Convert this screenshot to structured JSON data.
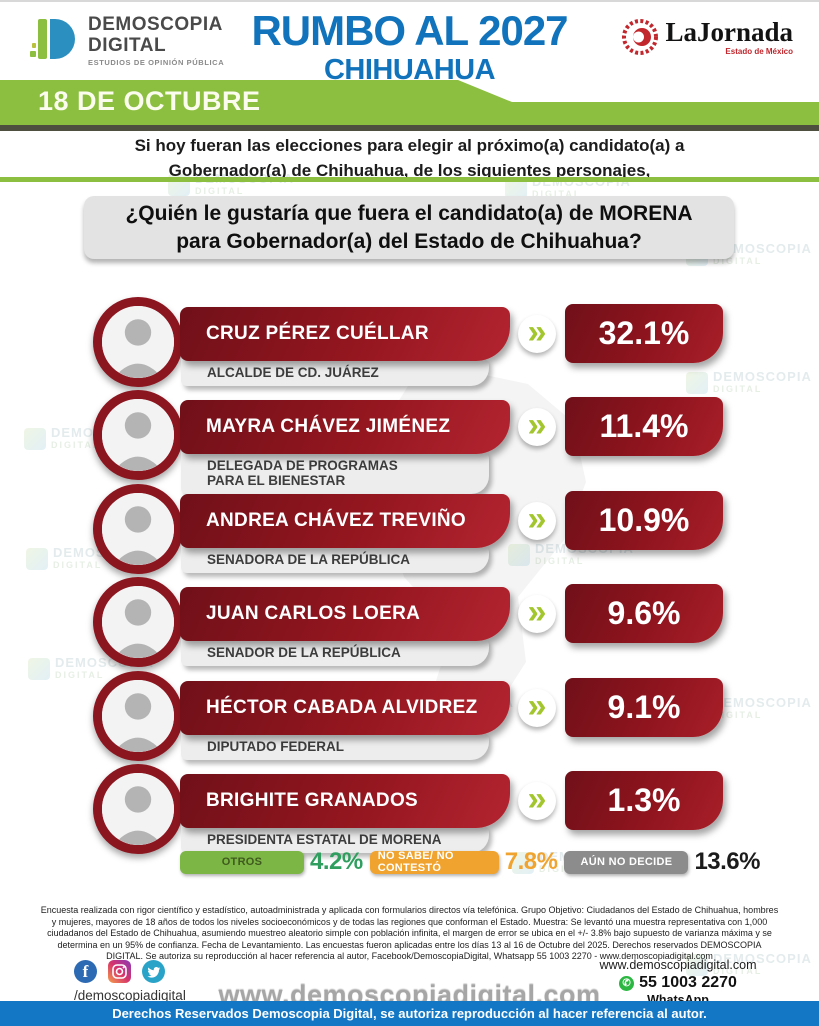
{
  "header": {
    "brand": {
      "line1": "DEMOSCOPIA",
      "line2": "DIGITAL",
      "tagline": "ESTUDIOS DE OPINIÓN PÚBLICA"
    },
    "title_line1": "RUMBO AL 2027",
    "title_line2": "CHIHUAHUA",
    "partner": {
      "name": "LaJornada",
      "sub": "Estado de México"
    },
    "date_banner": "18 DE OCTUBRE"
  },
  "intro": {
    "line1": "Si hoy fueran las elecciones para elegir al próximo(a) candidato(a) a",
    "line2": "Gobernador(a) de Chihuahua, de los siguientes personajes,"
  },
  "question": {
    "line1": "¿Quién le gustaría que fuera el candidato(a) de MORENA",
    "line2": "para Gobernador(a) del Estado de Chihuahua?"
  },
  "icons": {
    "chevron": "»",
    "facebook": "f",
    "whatsapp_phone": "✆"
  },
  "candidates": [
    {
      "name": "CRUZ PÉREZ CUÉLLAR",
      "title": "ALCALDE DE CD. JUÁREZ",
      "value": "32.1%"
    },
    {
      "name": "MAYRA CHÁVEZ JIMÉNEZ",
      "title": "DELEGADA DE PROGRAMAS\nPARA EL BIENESTAR",
      "value": "11.4%"
    },
    {
      "name": "ANDREA CHÁVEZ TREVIÑO",
      "title": "SENADORA DE LA REPÚBLICA",
      "value": "10.9%"
    },
    {
      "name": "JUAN CARLOS LOERA",
      "title": "SENADOR DE LA REPÚBLICA",
      "value": "9.6%"
    },
    {
      "name": "HÉCTOR CABADA ALVIDREZ",
      "title": "DIPUTADO FEDERAL",
      "value": "9.1%"
    },
    {
      "name": "BRIGHITE GRANADOS",
      "title": "PRESIDENTA ESTATAL DE MORENA",
      "value": "1.3%"
    }
  ],
  "stats": [
    {
      "label": "OTROS",
      "value": "4.2%",
      "bar_color": "#7cb645",
      "label_color": "#3f5a1e",
      "value_color": "#2f9e5f"
    },
    {
      "label": "NO SABE/ NO CONTESTÓ",
      "value": "7.8%",
      "bar_color": "#f0a32e",
      "label_color": "#ffffff",
      "value_color": "#f0a32e"
    },
    {
      "label": "AÚN NO DECIDE",
      "value": "13.6%",
      "bar_color": "#8c8c8c",
      "label_color": "#ffffff",
      "value_color": "#1c1c1c"
    }
  ],
  "chart_data": {
    "type": "bar",
    "title": "¿Quién le gustaría que fuera el candidato(a) de MORENA para Gobernador(a) del Estado de Chihuahua?",
    "categories": [
      "Cruz Pérez Cuéllar",
      "Mayra Chávez Jiménez",
      "Andrea Chávez Treviño",
      "Juan Carlos Loera",
      "Héctor Cabada Alvidrez",
      "Brighite Granados",
      "Otros",
      "No sabe/ No contestó",
      "Aún no decide"
    ],
    "values": [
      32.1,
      11.4,
      10.9,
      9.6,
      9.1,
      1.3,
      4.2,
      7.8,
      13.6
    ],
    "unit": "%",
    "xlabel": "",
    "ylabel": "",
    "date_label": "18 de Octubre"
  },
  "watermark": {
    "line1": "DEMOSCOPIA",
    "line2": "DIGITAL"
  },
  "fine_print": "Encuesta realizada con rigor científico y estadístico, autoadministrada y aplicada con formularios directos vía telefónica. Grupo Objetivo: Ciudadanos del Estado de Chihuahua, hombres y mujeres, mayores de 18 años de todos los niveles socioeconómicos y de todas las regiones que conforman el Estado. Muestra: Se levantó una muestra representativa con 1,000 ciudadanos del Estado de Chihuahua, asumiendo muestreo aleatorio simple con población infinita, el margen de error se ubica en el +/- 3.8% bajo supuesto de varianza máxima y se determina en un 95% de confianza. Fecha de Levantamiento. Las encuestas fueron aplicadas entre los días 13 al 16 de Octubre del 2025. Derechos reservados DEMOSCOPIA DIGITAL. Se autoriza su reproducción al hacer referencia al autor, Facebook/DemoscopiaDigital, Whatsapp 55 1003 2270 - www.demoscopiadigital.com",
  "footer": {
    "social_handle": "/demoscopiadigital",
    "center_url": "www.demoscopiadigital.com",
    "contact_url": "www.demoscopiadigital.com",
    "phone": "55 1003 2270",
    "whatsapp_label": "WhatsApp",
    "copyright": "Derechos Reservados Demoscopia Digital, se autoriza reproducción al hacer referencia al autor."
  }
}
